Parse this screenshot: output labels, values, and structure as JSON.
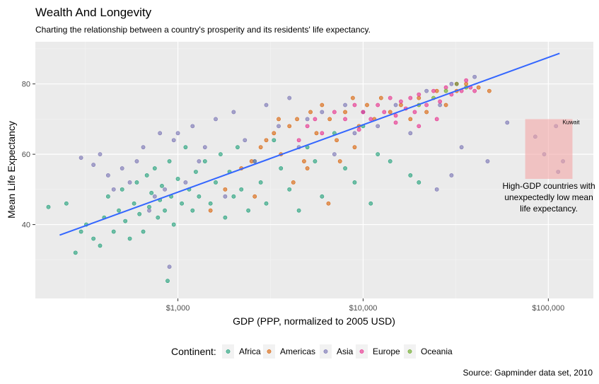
{
  "chart_data": {
    "type": "scatter",
    "title": "Wealth And Longevity",
    "subtitle": "Charting the relationship between a country's prosperity and its residents' life expectancy.",
    "xlabel": "GDP (PPP, normalized to 2005 USD)",
    "ylabel": "Mean Life Expectancy",
    "x_scale": "log10",
    "xlim": [
      170,
      175000
    ],
    "ylim": [
      19,
      92
    ],
    "x_ticks": [
      {
        "value": 1000,
        "label": "$1,000"
      },
      {
        "value": 10000,
        "label": "$10,000"
      },
      {
        "value": 100000,
        "label": "$100,000"
      }
    ],
    "y_ticks": [
      {
        "value": 40,
        "label": "40"
      },
      {
        "value": 60,
        "label": "60"
      },
      {
        "value": 80,
        "label": "80"
      }
    ],
    "grid": true,
    "background": "#ebebeb",
    "legend": {
      "title": "Continent:",
      "position": "bottom",
      "entries": [
        {
          "name": "Africa",
          "color": "#1b9e77"
        },
        {
          "name": "Americas",
          "color": "#d95f02"
        },
        {
          "name": "Asia",
          "color": "#7570b3"
        },
        {
          "name": "Europe",
          "color": "#e7298a"
        },
        {
          "name": "Oceania",
          "color": "#66a61e"
        }
      ]
    },
    "trend_line": {
      "type": "linear fit",
      "color": "#3366ff",
      "x": [
        230,
        115000
      ],
      "y": [
        37,
        88.7
      ]
    },
    "highlight_box": {
      "xlim": [
        75000,
        135000
      ],
      "ylim": [
        53,
        70
      ],
      "color": "#f4a7a7",
      "label": "Kuwait",
      "annotation": [
        "High-GDP countries with",
        "unexpectedly low mean",
        "life expectancy."
      ]
    },
    "series": [
      {
        "name": "Africa",
        "color": "#1b9e77",
        "points": [
          [
            200,
            45
          ],
          [
            250,
            46
          ],
          [
            280,
            32
          ],
          [
            300,
            38
          ],
          [
            320,
            40
          ],
          [
            350,
            36
          ],
          [
            380,
            34
          ],
          [
            400,
            42
          ],
          [
            420,
            48
          ],
          [
            450,
            38
          ],
          [
            480,
            44
          ],
          [
            500,
            50
          ],
          [
            520,
            41
          ],
          [
            550,
            36
          ],
          [
            580,
            46
          ],
          [
            600,
            52
          ],
          [
            620,
            43
          ],
          [
            650,
            38
          ],
          [
            680,
            54
          ],
          [
            700,
            45
          ],
          [
            720,
            49
          ],
          [
            750,
            56
          ],
          [
            780,
            42
          ],
          [
            800,
            47
          ],
          [
            820,
            51
          ],
          [
            850,
            44
          ],
          [
            880,
            24
          ],
          [
            900,
            58
          ],
          [
            920,
            48
          ],
          [
            950,
            40
          ],
          [
            1000,
            53
          ],
          [
            1050,
            46
          ],
          [
            1100,
            62
          ],
          [
            1150,
            50
          ],
          [
            1200,
            44
          ],
          [
            1250,
            55
          ],
          [
            1300,
            48
          ],
          [
            1400,
            58
          ],
          [
            1500,
            46
          ],
          [
            1600,
            52
          ],
          [
            1700,
            60
          ],
          [
            1800,
            42
          ],
          [
            1900,
            55
          ],
          [
            2000,
            48
          ],
          [
            2100,
            62
          ],
          [
            2200,
            50
          ],
          [
            2400,
            44
          ],
          [
            2600,
            58
          ],
          [
            2800,
            52
          ],
          [
            3000,
            46
          ],
          [
            3300,
            64
          ],
          [
            3600,
            56
          ],
          [
            4000,
            50
          ],
          [
            4500,
            44
          ],
          [
            5000,
            62
          ],
          [
            5500,
            58
          ],
          [
            6000,
            48
          ],
          [
            7000,
            66
          ],
          [
            8000,
            56
          ],
          [
            9000,
            52
          ],
          [
            10000,
            68
          ],
          [
            11000,
            46
          ],
          [
            12000,
            60
          ],
          [
            14000,
            58
          ],
          [
            18000,
            54
          ],
          [
            20000,
            52
          ]
        ]
      },
      {
        "name": "Americas",
        "color": "#d95f02",
        "points": [
          [
            1500,
            44
          ],
          [
            1800,
            50
          ],
          [
            2200,
            56
          ],
          [
            2500,
            58
          ],
          [
            2800,
            62
          ],
          [
            3000,
            64
          ],
          [
            3300,
            66
          ],
          [
            3600,
            60
          ],
          [
            4000,
            68
          ],
          [
            4400,
            70
          ],
          [
            4800,
            58
          ],
          [
            5200,
            72
          ],
          [
            5600,
            66
          ],
          [
            6000,
            74
          ],
          [
            6600,
            70
          ],
          [
            7200,
            64
          ],
          [
            8000,
            72
          ],
          [
            8800,
            76
          ],
          [
            9500,
            68
          ],
          [
            10500,
            74
          ],
          [
            11500,
            70
          ],
          [
            12500,
            76
          ],
          [
            14000,
            72
          ],
          [
            16000,
            74
          ],
          [
            18000,
            70
          ],
          [
            20000,
            76
          ],
          [
            22000,
            72
          ],
          [
            25000,
            78
          ],
          [
            28000,
            74
          ],
          [
            32000,
            78
          ],
          [
            36000,
            80
          ],
          [
            42000,
            79
          ],
          [
            48000,
            78
          ],
          [
            6500,
            46
          ],
          [
            4200,
            52
          ],
          [
            7500,
            58
          ],
          [
            9000,
            62
          ],
          [
            3500,
            70
          ],
          [
            2600,
            48
          ],
          [
            5000,
            56
          ]
        ]
      },
      {
        "name": "Asia",
        "color": "#7570b3",
        "points": [
          [
            300,
            59
          ],
          [
            350,
            57
          ],
          [
            380,
            60
          ],
          [
            420,
            54
          ],
          [
            450,
            50
          ],
          [
            500,
            56
          ],
          [
            550,
            52
          ],
          [
            600,
            58
          ],
          [
            650,
            62
          ],
          [
            700,
            44
          ],
          [
            750,
            48
          ],
          [
            800,
            66
          ],
          [
            850,
            50
          ],
          [
            900,
            28
          ],
          [
            950,
            64
          ],
          [
            1000,
            66
          ],
          [
            1100,
            52
          ],
          [
            1200,
            68
          ],
          [
            1300,
            58
          ],
          [
            1400,
            62
          ],
          [
            1600,
            70
          ],
          [
            1800,
            48
          ],
          [
            2000,
            72
          ],
          [
            2300,
            64
          ],
          [
            2600,
            58
          ],
          [
            3000,
            74
          ],
          [
            3500,
            68
          ],
          [
            4000,
            76
          ],
          [
            4500,
            62
          ],
          [
            5000,
            70
          ],
          [
            6000,
            72
          ],
          [
            7000,
            60
          ],
          [
            8000,
            74
          ],
          [
            9000,
            66
          ],
          [
            10000,
            72
          ],
          [
            12000,
            68
          ],
          [
            15000,
            74
          ],
          [
            18000,
            66
          ],
          [
            22000,
            78
          ],
          [
            26000,
            74
          ],
          [
            30000,
            80
          ],
          [
            34000,
            62
          ],
          [
            40000,
            82
          ],
          [
            47000,
            58
          ],
          [
            60000,
            69
          ],
          [
            85000,
            65
          ],
          [
            95000,
            60
          ],
          [
            110000,
            68
          ],
          [
            113000,
            55
          ],
          [
            120000,
            58
          ],
          [
            25000,
            50
          ],
          [
            30000,
            54
          ]
        ]
      },
      {
        "name": "Europe",
        "color": "#e7298a",
        "points": [
          [
            4500,
            64
          ],
          [
            5000,
            68
          ],
          [
            5500,
            70
          ],
          [
            6000,
            66
          ],
          [
            7000,
            72
          ],
          [
            8000,
            70
          ],
          [
            9000,
            74
          ],
          [
            10000,
            72
          ],
          [
            11000,
            70
          ],
          [
            12000,
            74
          ],
          [
            13000,
            72
          ],
          [
            14000,
            76
          ],
          [
            15000,
            71
          ],
          [
            16000,
            75
          ],
          [
            17000,
            73
          ],
          [
            18000,
            76
          ],
          [
            19000,
            72
          ],
          [
            20000,
            77
          ],
          [
            22000,
            74
          ],
          [
            24000,
            78
          ],
          [
            26000,
            75
          ],
          [
            28000,
            79
          ],
          [
            30000,
            77
          ],
          [
            32000,
            80
          ],
          [
            34000,
            78
          ],
          [
            36000,
            81
          ],
          [
            38000,
            79
          ],
          [
            40000,
            78
          ],
          [
            25000,
            70
          ],
          [
            20000,
            68
          ],
          [
            15000,
            69
          ],
          [
            9500,
            67
          ]
        ]
      },
      {
        "name": "Oceania",
        "color": "#66a61e",
        "points": [
          [
            20000,
            74
          ],
          [
            24000,
            76
          ],
          [
            28000,
            78
          ],
          [
            32000,
            80
          ],
          [
            36000,
            79
          ]
        ]
      }
    ]
  }
}
